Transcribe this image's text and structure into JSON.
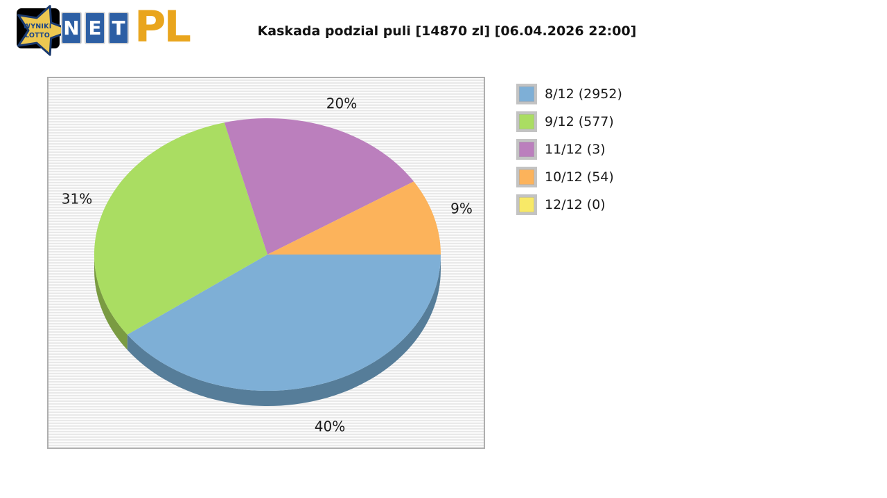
{
  "header": {
    "logo": {
      "star_line1": "WYNIKI",
      "star_line2": "LOTTO",
      "tiles": [
        "N",
        "E",
        "T"
      ],
      "suffix": "PL",
      "colors": {
        "tile_blue": "#2d5fa4",
        "suffix_gold": "#e9a51d",
        "star_fill": "#ecc751",
        "star_outline": "#1b3a6e",
        "star_text": "#1c4587",
        "box_black": "#000000"
      }
    },
    "title": "Kaskada podzial puli [14870 zl] [06.04.2026 22:00]"
  },
  "chart_data": {
    "type": "pie",
    "title": "Kaskada podzial puli [14870 zl] [06.04.2026 22:00]",
    "effect_3d": true,
    "start_angle_deg": 0,
    "direction": "clockwise",
    "legend_position": "right",
    "grid": "striped-background",
    "slices": [
      {
        "label": "8/12 (2952)",
        "tier": "8/12",
        "winners": 2952,
        "percent": 40,
        "percent_label": "40%",
        "color": "#7eafd6",
        "side_color": "#567d99"
      },
      {
        "label": "9/12 (577)",
        "tier": "9/12",
        "winners": 577,
        "percent": 31,
        "percent_label": "31%",
        "color": "#aadd62",
        "side_color": "#7a9b42"
      },
      {
        "label": "11/12 (3)",
        "tier": "11/12",
        "winners": 3,
        "percent": 20,
        "percent_label": "20%",
        "color": "#bb7fbd",
        "side_color": "#8a5a8c"
      },
      {
        "label": "10/12 (54)",
        "tier": "10/12",
        "winners": 54,
        "percent": 9,
        "percent_label": "9%",
        "color": "#fcb35b",
        "side_color": "#bd7f38"
      },
      {
        "label": "12/12 (0)",
        "tier": "12/12",
        "winners": 0,
        "percent": 0,
        "percent_label": "0%",
        "color": "#f8e967",
        "side_color": "#c0b144"
      }
    ]
  }
}
